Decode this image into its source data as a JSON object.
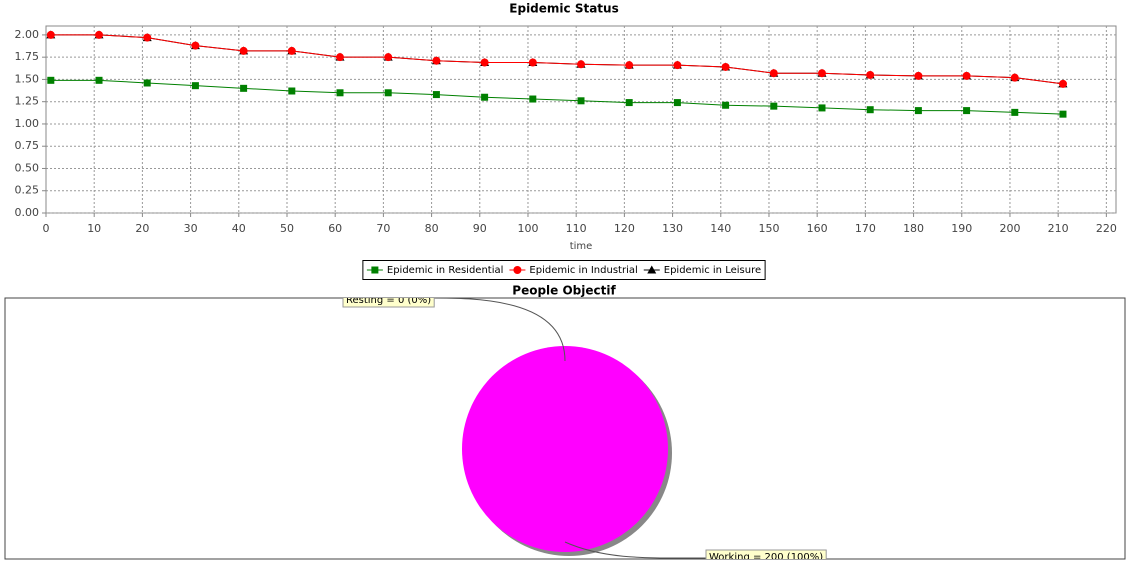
{
  "chart_data": [
    {
      "type": "line",
      "title": "Epidemic Status",
      "x_label": "time",
      "x": [
        1,
        11,
        21,
        31,
        41,
        51,
        61,
        71,
        81,
        91,
        101,
        111,
        121,
        131,
        141,
        151,
        161,
        171,
        181,
        191,
        201,
        211
      ],
      "series": [
        {
          "name": "Epidemic in Residential",
          "color": "#008000",
          "marker": "square",
          "values": [
            1.49,
            1.49,
            1.46,
            1.43,
            1.4,
            1.37,
            1.35,
            1.35,
            1.33,
            1.3,
            1.28,
            1.26,
            1.24,
            1.24,
            1.21,
            1.2,
            1.18,
            1.16,
            1.15,
            1.15,
            1.13,
            1.11
          ]
        },
        {
          "name": "Epidemic in Industrial",
          "color": "#ff0000",
          "marker": "circle",
          "values": [
            2.0,
            2.0,
            1.97,
            1.88,
            1.82,
            1.82,
            1.75,
            1.75,
            1.71,
            1.69,
            1.69,
            1.67,
            1.66,
            1.66,
            1.64,
            1.57,
            1.57,
            1.55,
            1.54,
            1.54,
            1.52,
            1.45
          ]
        },
        {
          "name": "Epidemic in Leisure",
          "color": "#000000",
          "marker": "triangle",
          "values": [
            2.0,
            2.0,
            1.97,
            1.88,
            1.82,
            1.82,
            1.75,
            1.75,
            1.71,
            1.69,
            1.69,
            1.67,
            1.66,
            1.66,
            1.64,
            1.57,
            1.57,
            1.55,
            1.54,
            1.54,
            1.52,
            1.45
          ]
        }
      ],
      "xlim": [
        0,
        222
      ],
      "ylim": [
        0,
        2.1
      ],
      "xticks": [
        0,
        10,
        20,
        30,
        40,
        50,
        60,
        70,
        80,
        90,
        100,
        110,
        120,
        130,
        140,
        150,
        160,
        170,
        180,
        190,
        200,
        210,
        220
      ],
      "yticks": [
        {
          "value": 0,
          "label": "0.00"
        },
        {
          "value": 0.25,
          "label": "0.25"
        },
        {
          "value": 0.5,
          "label": "0.50"
        },
        {
          "value": 0.75,
          "label": "0.75"
        },
        {
          "value": 1,
          "label": "1.00"
        },
        {
          "value": 1.25,
          "label": "1.25"
        },
        {
          "value": 1.5,
          "label": "1.50"
        },
        {
          "value": 1.75,
          "label": "1.75"
        },
        {
          "value": 2,
          "label": "2.00"
        }
      ],
      "grid": true,
      "legend": "bottom"
    },
    {
      "type": "pie",
      "title": "People Objectif",
      "categories": [
        "Resting",
        "Working"
      ],
      "values": [
        0,
        200
      ],
      "value_labels": [
        "Resting = 0 (0%)",
        "Working = 200 (100%)"
      ],
      "colors": [
        "#ff5555",
        "#ff00ff"
      ]
    }
  ]
}
